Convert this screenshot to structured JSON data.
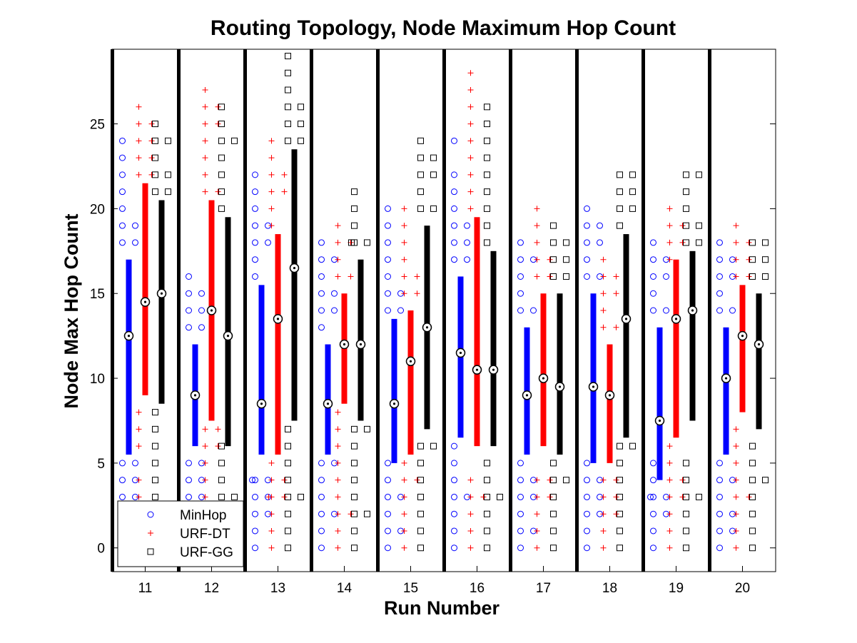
{
  "chart_data": {
    "type": "scatter",
    "title": "Routing Topology, Node Maximum Hop Count",
    "xlabel": "Run Number",
    "ylabel": "Node Max Hop Count",
    "categories": [
      "11",
      "12",
      "13",
      "14",
      "15",
      "16",
      "17",
      "18",
      "19",
      "20"
    ],
    "ylim": [
      -1.4,
      29.4
    ],
    "yticks": [
      0,
      5,
      10,
      15,
      20,
      25
    ],
    "grid": false,
    "legend_position": "bottom-left",
    "series": [
      {
        "name": "MinHop",
        "color": "#0000ff",
        "marker": "circle",
        "medians": [
          12.5,
          9,
          8.5,
          8.5,
          8.5,
          11.5,
          9,
          9.5,
          7.5,
          10
        ],
        "ranges": [
          [
            5.5,
            17
          ],
          [
            6,
            12
          ],
          [
            5.5,
            15.5
          ],
          [
            5.5,
            12
          ],
          [
            5,
            13.5
          ],
          [
            6.5,
            16
          ],
          [
            5.5,
            13
          ],
          [
            5,
            15
          ],
          [
            4,
            13
          ],
          [
            5.5,
            13
          ]
        ],
        "points": [
          [
            24,
            23,
            22,
            21,
            20,
            19,
            19,
            18,
            18,
            5,
            5,
            4,
            4,
            3,
            3
          ],
          [
            16,
            15,
            15,
            14,
            14,
            13,
            13,
            5,
            5,
            4,
            4,
            3,
            3,
            2
          ],
          [
            22,
            21,
            20,
            19,
            19,
            18,
            18,
            17,
            16,
            4,
            4,
            4,
            3,
            3,
            2,
            2,
            1,
            0
          ],
          [
            18,
            17,
            17,
            16,
            15,
            15,
            14,
            14,
            13,
            5,
            5,
            4,
            3,
            2,
            2,
            1,
            0
          ],
          [
            20,
            19,
            18,
            17,
            16,
            15,
            15,
            14,
            14,
            5,
            4,
            3,
            3,
            2,
            1,
            1,
            0
          ],
          [
            24,
            22,
            21,
            20,
            19,
            19,
            18,
            18,
            17,
            17,
            6,
            5,
            4,
            3,
            3,
            2,
            1,
            0
          ],
          [
            18,
            17,
            17,
            16,
            15,
            14,
            14,
            5,
            4,
            4,
            3,
            3,
            2,
            1,
            1,
            0
          ],
          [
            20,
            19,
            19,
            18,
            18,
            17,
            16,
            16,
            5,
            4,
            4,
            3,
            3,
            2,
            2,
            1,
            0
          ],
          [
            18,
            17,
            17,
            16,
            16,
            15,
            14,
            14,
            5,
            4,
            3,
            3,
            3,
            2,
            2,
            1,
            0
          ],
          [
            18,
            17,
            17,
            16,
            16,
            15,
            14,
            14,
            5,
            4,
            4,
            3,
            2,
            2,
            1,
            1,
            0
          ]
        ]
      },
      {
        "name": "URF-DT",
        "color": "#ff0000",
        "marker": "plus",
        "medians": [
          14.5,
          14,
          13.5,
          12,
          11,
          10.5,
          10,
          9,
          13.5,
          12.5
        ],
        "ranges": [
          [
            9,
            21.5
          ],
          [
            7.5,
            20.5
          ],
          [
            5.5,
            18.5
          ],
          [
            8.5,
            15
          ],
          [
            5.5,
            14
          ],
          [
            6,
            19.5
          ],
          [
            6,
            15
          ],
          [
            5,
            12
          ],
          [
            6.5,
            17
          ],
          [
            8,
            15.5
          ]
        ],
        "points": [
          [
            26,
            25,
            25,
            24,
            24,
            23,
            23,
            22,
            22,
            8,
            7,
            6,
            4,
            3
          ],
          [
            27,
            26,
            26,
            25,
            25,
            24,
            23,
            22,
            21,
            21,
            7,
            7,
            6,
            6,
            5,
            4,
            3,
            2
          ],
          [
            24,
            23,
            22,
            22,
            21,
            21,
            20,
            19,
            5,
            4,
            4,
            3,
            3,
            3,
            2,
            1,
            0
          ],
          [
            19,
            18,
            18,
            17,
            16,
            16,
            8,
            7,
            6,
            5,
            4,
            3,
            2,
            2,
            1,
            0
          ],
          [
            20,
            19,
            18,
            17,
            16,
            16,
            15,
            15,
            5,
            4,
            4,
            3,
            2,
            1,
            0
          ],
          [
            28,
            27,
            26,
            25,
            24,
            23,
            22,
            21,
            20,
            4,
            3,
            3,
            2,
            1,
            0
          ],
          [
            20,
            19,
            18,
            17,
            17,
            16,
            16,
            4,
            4,
            3,
            3,
            2,
            1,
            0
          ],
          [
            17,
            16,
            16,
            15,
            15,
            14,
            13,
            13,
            4,
            4,
            3,
            3,
            2,
            2,
            1,
            0
          ],
          [
            20,
            19,
            19,
            18,
            18,
            17,
            6,
            5,
            4,
            4,
            3,
            3,
            2,
            1,
            0
          ],
          [
            19,
            18,
            18,
            17,
            17,
            16,
            16,
            7,
            6,
            5,
            4,
            3,
            3,
            2,
            1,
            0
          ]
        ]
      },
      {
        "name": "URF-GG",
        "color": "#000000",
        "marker": "square",
        "medians": [
          15,
          12.5,
          16.5,
          12,
          13,
          10.5,
          9.5,
          13.5,
          14,
          12
        ],
        "ranges": [
          [
            8.5,
            20.5
          ],
          [
            6,
            19.5
          ],
          [
            7.5,
            23.5
          ],
          [
            7.5,
            17
          ],
          [
            7,
            19
          ],
          [
            6,
            17.5
          ],
          [
            5.5,
            15
          ],
          [
            6.5,
            18.5
          ],
          [
            7.5,
            17.5
          ],
          [
            7,
            15
          ]
        ],
        "points": [
          [
            25,
            24,
            24,
            23,
            22,
            22,
            21,
            21,
            8,
            7,
            6,
            5,
            4,
            3
          ],
          [
            26,
            25,
            24,
            24,
            23,
            22,
            21,
            20,
            6,
            5,
            4,
            3,
            3,
            2,
            1
          ],
          [
            29,
            28,
            27,
            26,
            26,
            25,
            25,
            24,
            24,
            7,
            6,
            5,
            4,
            3,
            3,
            2,
            1,
            0
          ],
          [
            21,
            20,
            19,
            18,
            18,
            18,
            7,
            7,
            6,
            5,
            4,
            3,
            2,
            2,
            1,
            0
          ],
          [
            24,
            23,
            23,
            22,
            22,
            21,
            20,
            20,
            6,
            6,
            5,
            4,
            3,
            2,
            1,
            0
          ],
          [
            26,
            25,
            24,
            23,
            22,
            21,
            20,
            19,
            18,
            5,
            4,
            3,
            3,
            2,
            1,
            0
          ],
          [
            19,
            18,
            18,
            17,
            17,
            16,
            16,
            5,
            4,
            4,
            3,
            2,
            1,
            0
          ],
          [
            22,
            22,
            21,
            21,
            20,
            20,
            19,
            6,
            6,
            5,
            4,
            3,
            2,
            1,
            0
          ],
          [
            22,
            22,
            21,
            20,
            19,
            19,
            18,
            18,
            5,
            4,
            3,
            3,
            2,
            1,
            0
          ],
          [
            18,
            18,
            17,
            17,
            16,
            16,
            6,
            5,
            4,
            4,
            3,
            2,
            1,
            0
          ]
        ]
      }
    ]
  }
}
